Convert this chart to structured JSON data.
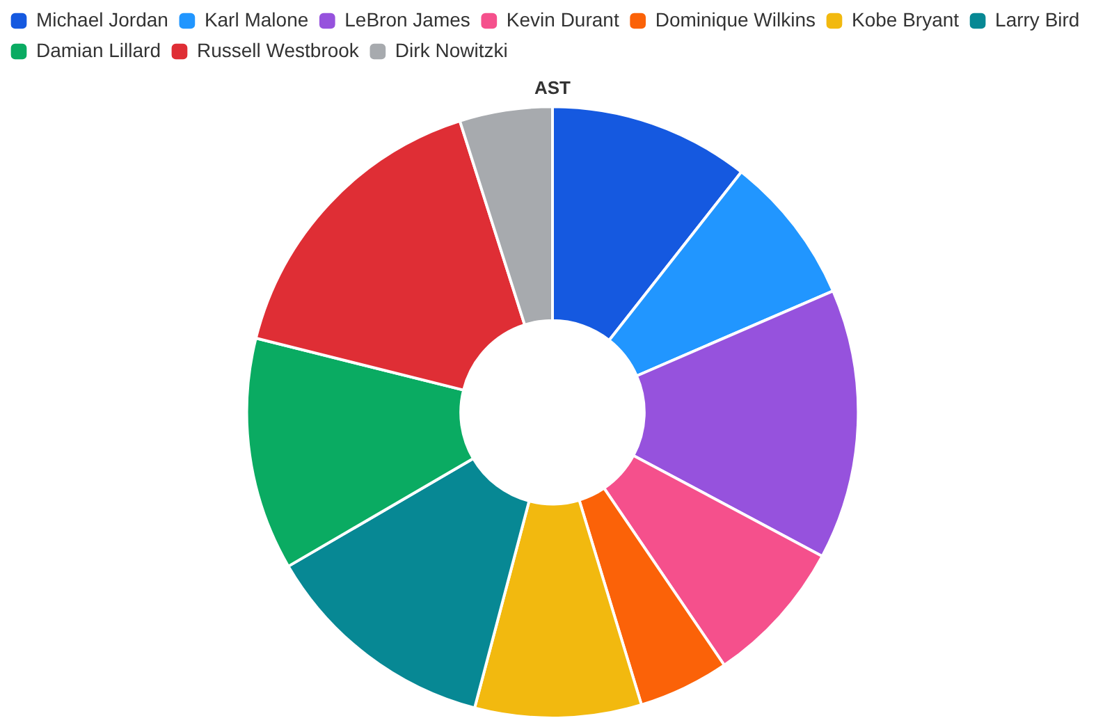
{
  "chart_data": {
    "type": "donut",
    "title": "AST",
    "legend": "top left",
    "categories": [
      "Michael Jordan",
      "Karl Malone",
      "LeBron James",
      "Kevin Durant",
      "Dominique Wilkins",
      "Kobe Bryant",
      "Larry Bird",
      "Damian Lillard",
      "Russell Westbrook",
      "Dirk Nowitzki"
    ],
    "values": [
      10.6,
      7.9,
      14.3,
      7.7,
      4.8,
      8.8,
      12.5,
      12.3,
      16.2,
      4.9
    ],
    "colors": [
      "#1559e0",
      "#2196ff",
      "#9652dd",
      "#f5508c",
      "#fb6208",
      "#f2b90f",
      "#078894",
      "#0aab62",
      "#df2e35",
      "#a7aaae"
    ]
  }
}
